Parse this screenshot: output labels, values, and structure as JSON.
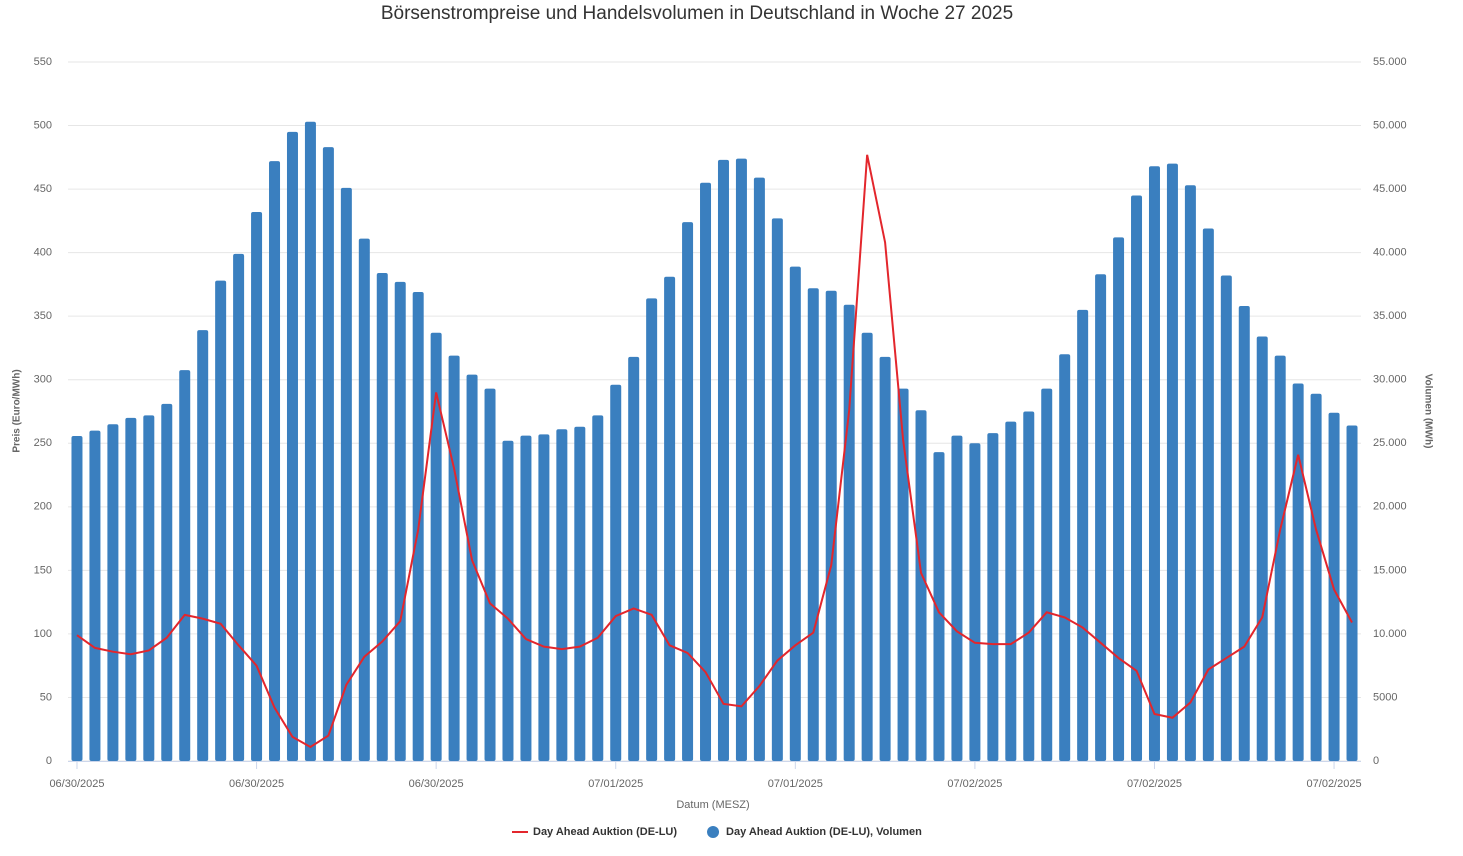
{
  "chart_data": {
    "type": "bar",
    "title": "Börsenstrompreise und Handelsvolumen in Deutschland in Woche 27 2025",
    "xlabel": "Datum (MESZ)",
    "ylabel": "Preis (Euro/MWh)",
    "y2label": "Volumen (MWh)",
    "categories": [
      "06/30/2025",
      null,
      null,
      null,
      null,
      null,
      null,
      null,
      null,
      null,
      "06/30/2025",
      null,
      null,
      null,
      null,
      null,
      null,
      null,
      null,
      null,
      "06/30/2025",
      null,
      null,
      null,
      null,
      null,
      null,
      null,
      null,
      null,
      "07/01/2025",
      null,
      null,
      null,
      null,
      null,
      null,
      null,
      null,
      null,
      "07/01/2025",
      null,
      null,
      null,
      null,
      null,
      null,
      null,
      null,
      null,
      "07/02/2025",
      null,
      null,
      null,
      null,
      null,
      null,
      null,
      null,
      null,
      "07/02/2025",
      null,
      null,
      null,
      null,
      null,
      null,
      null,
      null,
      null,
      "07/02/2025",
      null
    ],
    "series": [
      {
        "name": "Day Ahead Auktion (DE-LU)",
        "type": "line",
        "color": "#e3262c",
        "values": [
          99,
          89,
          86,
          84,
          87,
          97,
          115,
          112,
          108,
          91,
          75,
          42,
          19,
          11,
          20,
          60,
          82,
          94,
          110,
          182,
          290,
          230,
          158,
          124,
          112,
          96,
          90,
          88,
          90,
          97,
          114,
          120,
          115,
          91,
          85,
          70,
          45,
          43,
          59,
          79,
          91,
          101,
          154,
          276,
          477,
          408,
          253,
          148,
          117,
          102,
          93,
          92,
          92,
          101,
          117,
          113,
          105,
          93,
          81,
          71,
          37,
          34,
          46,
          72,
          81,
          90,
          113,
          182,
          241,
          182,
          135,
          109
        ]
      },
      {
        "name": "Day Ahead Auktion (DE-LU), Volumen",
        "type": "bar",
        "color": "#3a7fbf",
        "axis": "y2",
        "values": [
          25570,
          26000,
          26500,
          27000,
          27200,
          28100,
          30760,
          33900,
          37800,
          39900,
          43200,
          47200,
          49500,
          50300,
          48300,
          45100,
          41100,
          38400,
          37700,
          36900,
          33700,
          31900,
          30400,
          29300,
          25200,
          25600,
          25700,
          26100,
          26300,
          27200,
          29600,
          31800,
          36400,
          38100,
          42400,
          45500,
          47300,
          47400,
          45900,
          42700,
          38900,
          37200,
          37000,
          35900,
          33700,
          31800,
          29300,
          27600,
          24300,
          25600,
          25000,
          25800,
          26700,
          27500,
          29300,
          32000,
          35500,
          38300,
          41200,
          44500,
          46800,
          47000,
          45300,
          41900,
          38200,
          35800,
          33400,
          31900,
          29700,
          28900,
          27400,
          26400
        ]
      }
    ],
    "ylim": [
      0,
      550
    ],
    "yticks": [
      0,
      50,
      100,
      150,
      200,
      250,
      300,
      350,
      400,
      450,
      500,
      550
    ],
    "y2lim": [
      0,
      55000
    ],
    "y2ticks": [
      0,
      {
        "value": 5000,
        "label": "5000"
      },
      {
        "value": 10000,
        "label": "10.000"
      },
      {
        "value": 15000,
        "label": "15.000"
      },
      {
        "value": 20000,
        "label": "20.000"
      },
      {
        "value": 25000,
        "label": "25.000"
      },
      {
        "value": 30000,
        "label": "30.000"
      },
      {
        "value": 35000,
        "label": "35.000"
      },
      {
        "value": 40000,
        "label": "40.000"
      },
      {
        "value": 45000,
        "label": "45.000"
      },
      {
        "value": 50000,
        "label": "50.000"
      },
      {
        "value": 55000,
        "label": "55.000"
      }
    ],
    "grid": true,
    "legend": "bottom"
  }
}
